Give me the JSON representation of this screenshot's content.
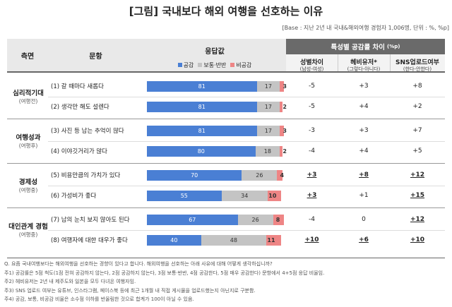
{
  "title": "[그림] 국내보다 해외 여행을 선호하는 이유",
  "subtitle": "[Base : 지난 2년 내 국내&해외여행 경험자 1,006명, 단위 : %, %p]",
  "header": {
    "aspect": "측면",
    "item": "문항",
    "response": "응답값",
    "legend": [
      {
        "name": "공감",
        "color": "#4a7fd4"
      },
      {
        "name": "보통·반반",
        "color": "#c4c4c4"
      },
      {
        "name": "비공감",
        "color": "#ee8585"
      }
    ],
    "diff_title": "특성별 공감률 차이",
    "diff_unit": "(%p)",
    "diff_columns": [
      {
        "name": "성별차이",
        "sub": "(남성-여성)"
      },
      {
        "name": "헤비유저*",
        "sub": "(그렇다-아니다)"
      },
      {
        "name": "SNS업로드여부",
        "sub": "(한다-안한다)"
      }
    ]
  },
  "groups": [
    {
      "name": "심리적기대",
      "sub": "(여행전)",
      "rows": [
        {
          "label": "(1) 갈 때마다 새롭다",
          "values": [
            81,
            17,
            3
          ],
          "diffs": [
            "-5",
            "+3",
            "+8"
          ],
          "bold": [
            false,
            false,
            false
          ]
        },
        {
          "label": "(2) 생각만 해도 설렌다",
          "values": [
            81,
            17,
            2
          ],
          "diffs": [
            "-5",
            "+4",
            "+2"
          ],
          "bold": [
            false,
            false,
            false
          ]
        }
      ]
    },
    {
      "name": "여행성과",
      "sub": "(여행후)",
      "rows": [
        {
          "label": "(3) 사진 등 남는 추억이 많다",
          "values": [
            81,
            17,
            3
          ],
          "diffs": [
            "-3",
            "+3",
            "+7"
          ],
          "bold": [
            false,
            false,
            false
          ]
        },
        {
          "label": "(4) 이야깃거리가 많다",
          "values": [
            80,
            18,
            2
          ],
          "diffs": [
            "-4",
            "+4",
            "+5"
          ],
          "bold": [
            false,
            false,
            false
          ]
        }
      ]
    },
    {
      "name": "경제성",
      "sub": "(여행중)",
      "rows": [
        {
          "label": "(5) 비용만큼의 가치가 있다",
          "values": [
            70,
            26,
            4
          ],
          "diffs": [
            "+3",
            "+8",
            "+12"
          ],
          "bold": [
            true,
            true,
            true
          ]
        },
        {
          "label": "(6) 가성비가 좋다",
          "values": [
            55,
            34,
            10
          ],
          "diffs": [
            "+3",
            "+1",
            "+15"
          ],
          "bold": [
            true,
            false,
            true
          ]
        }
      ]
    },
    {
      "name": "대인관계 경험",
      "sub": "(여행중)",
      "rows": [
        {
          "label": "(7) 남의 눈치 보지 않아도 된다",
          "values": [
            67,
            26,
            8
          ],
          "diffs": [
            "-4",
            "0",
            "+12"
          ],
          "bold": [
            false,
            false,
            true
          ]
        },
        {
          "label": "(8) 여행자에 대한 대우가 좋다",
          "values": [
            40,
            48,
            11
          ],
          "diffs": [
            "+10",
            "+6",
            "+10"
          ],
          "bold": [
            true,
            true,
            true
          ]
        }
      ]
    }
  ],
  "notes": [
    "Q. 요즘 국내여행보다는 해외여행을 선호하는 경향이 있다고 합니다. 해외여행을 선호하는 아래 사유에 대해 어떻게 생각하십니까?",
    "주1) 공감률은 5점 척도(1점 전혀 공감하지 않는다, 2점 공감하지 않는다, 3점 보통·반반, 4점 공감한다, 5점 매우 공감한다) 문항에서 4+5점 응답 비율임.",
    "주2) 헤비유저는 2년 내 제주도와 일본을 모두 다녀온 여행자임.",
    "주3) SNS 업로드 여부는 유튜브, 인스타그램, 페이스북 등에 최근 1개월 내 직접 게시물을 업로드했는지 아닌지로 구분함.",
    "주4) 공감, 보통, 비공감 비율은 소수점 이하를 반올림한 것으로 합계가 100이 아닐 수 있음."
  ]
}
